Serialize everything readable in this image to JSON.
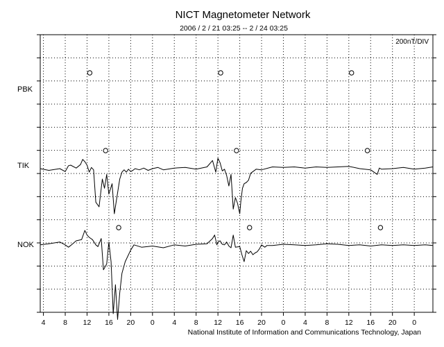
{
  "chart_data": {
    "type": "line",
    "title": "NICT Magnetometer Network",
    "subtitle": "2006 / 2 / 21   03:25 --  2 / 24   03:25",
    "scale_label": "200nT/DIV",
    "credit": "National Institute of Information and Communications Technology, Japan",
    "x_tick_labels": [
      "4",
      "8",
      "12",
      "16",
      "20",
      "0",
      "4",
      "8",
      "12",
      "16",
      "20",
      "0",
      "4",
      "8",
      "12",
      "16",
      "20",
      "0"
    ],
    "x_tick_hours": [
      4,
      8,
      12,
      16,
      20,
      24,
      28,
      32,
      36,
      40,
      44,
      48,
      52,
      56,
      60,
      64,
      68,
      72
    ],
    "xlim_hours": [
      3.4167,
      75.4167
    ],
    "y_divisions": 12,
    "grid": true,
    "stations": [
      "PBK",
      "TIK",
      "NOK"
    ],
    "noon_markers_hours": {
      "PBK": [
        12.5,
        36.5,
        60.5
      ],
      "TIK": [
        15.4,
        39.4,
        63.4
      ],
      "NOK": [
        17.8,
        41.8,
        65.8
      ]
    },
    "series": [
      {
        "name": "PBK",
        "x_hours": [],
        "values": []
      },
      {
        "name": "TIK",
        "x_hours": [
          3.4,
          5,
          7,
          8,
          8.6,
          9,
          10,
          10.8,
          11.2,
          11.6,
          12,
          12.4,
          12.8,
          13.2,
          13.6,
          14.2,
          14.8,
          15.2,
          15.6,
          16,
          16.6,
          17,
          17.4,
          18,
          18.4,
          18.8,
          19.2,
          19.6,
          20,
          20.4,
          20.8,
          21.6,
          22.4,
          23.2,
          24,
          25,
          26,
          28,
          30,
          32,
          34,
          35,
          35.6,
          36,
          36.4,
          36.8,
          37.2,
          37.6,
          38,
          38.4,
          38.8,
          39.2,
          39.6,
          40,
          40.2,
          40.5,
          40.8,
          41.2,
          41.6,
          42,
          43,
          44,
          46,
          48,
          50,
          52,
          54,
          56,
          58,
          60,
          62,
          64,
          65.2,
          65.6,
          66,
          68,
          70,
          72,
          74,
          75.4
        ],
        "values": [
          -30,
          -45,
          -30,
          -55,
          -5,
          0,
          -25,
          5,
          50,
          30,
          0,
          -60,
          -20,
          -40,
          -320,
          -360,
          -120,
          -200,
          -80,
          -250,
          -160,
          -420,
          -300,
          -120,
          -60,
          -40,
          -60,
          -35,
          -55,
          -45,
          -30,
          -40,
          -25,
          -45,
          -30,
          -20,
          -40,
          -25,
          -20,
          -35,
          -15,
          40,
          -60,
          60,
          20,
          -50,
          -35,
          -90,
          -180,
          -80,
          -380,
          -280,
          -330,
          -420,
          -310,
          -200,
          -160,
          -150,
          -130,
          -70,
          -35,
          -40,
          -15,
          -20,
          -15,
          -25,
          -15,
          -20,
          -15,
          -10,
          -30,
          -40,
          -80,
          -25,
          -35,
          -30,
          -20,
          -35,
          -25,
          -15
        ]
      },
      {
        "name": "NOK",
        "x_hours": [
          3.4,
          5,
          7,
          8,
          8.6,
          9,
          10,
          11,
          11.6,
          12,
          12.4,
          13,
          13.6,
          14,
          14.6,
          15,
          15.6,
          16,
          16.4,
          16.8,
          17.2,
          17.6,
          18,
          18.4,
          19,
          20,
          20.6,
          22,
          24,
          26,
          28,
          30,
          32,
          34,
          35,
          35.4,
          35.8,
          36,
          36.4,
          36.8,
          37.2,
          37.6,
          38,
          38.4,
          38.8,
          39.2,
          40,
          40.4,
          40.8,
          41.2,
          41.6,
          42,
          42.4,
          42.8,
          43.2,
          43.6,
          44,
          44.6,
          45,
          46,
          48,
          50,
          52,
          54,
          56,
          58,
          60,
          62,
          64,
          66,
          68,
          70,
          72,
          74,
          75.4
        ],
        "values": [
          -5,
          5,
          20,
          -5,
          -25,
          -10,
          30,
          40,
          120,
          80,
          60,
          40,
          -5,
          -20,
          50,
          -220,
          -170,
          20,
          -150,
          -600,
          -350,
          -650,
          -420,
          -250,
          -150,
          -50,
          -5,
          -25,
          -15,
          -30,
          -5,
          -15,
          0,
          5,
          50,
          80,
          -5,
          20,
          30,
          0,
          -5,
          20,
          -15,
          -30,
          80,
          -25,
          -20,
          -90,
          -150,
          -55,
          -80,
          -60,
          -90,
          -75,
          -65,
          -40,
          -5,
          -25,
          -10,
          -10,
          0,
          -5,
          -10,
          -5,
          5,
          0,
          -10,
          -5,
          -15,
          -5,
          -10,
          -5,
          -10,
          -5,
          -10
        ]
      }
    ]
  }
}
